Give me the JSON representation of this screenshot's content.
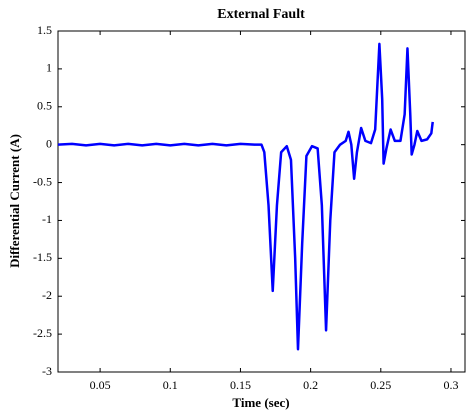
{
  "chart_data": {
    "type": "line",
    "title": "External Fault",
    "x_label": "Time (sec)",
    "y_label": "Differential Current (A)",
    "x": [
      0.02,
      0.03,
      0.04,
      0.05,
      0.06,
      0.07,
      0.08,
      0.09,
      0.1,
      0.11,
      0.12,
      0.13,
      0.14,
      0.15,
      0.16,
      0.165,
      0.167,
      0.17,
      0.173,
      0.176,
      0.179,
      0.183,
      0.186,
      0.189,
      0.191,
      0.194,
      0.197,
      0.201,
      0.205,
      0.208,
      0.211,
      0.214,
      0.217,
      0.221,
      0.225,
      0.227,
      0.229,
      0.231,
      0.233,
      0.236,
      0.239,
      0.243,
      0.246,
      0.249,
      0.251,
      0.252,
      0.254,
      0.257,
      0.26,
      0.264,
      0.267,
      0.269,
      0.271,
      0.272,
      0.274,
      0.276,
      0.279,
      0.283,
      0.286,
      0.287
    ],
    "series": [
      {
        "name": "Differential Current",
        "color": "#0000ff",
        "values": [
          0,
          0.01,
          -0.01,
          0.01,
          -0.01,
          0.01,
          -0.01,
          0.01,
          -0.01,
          0.01,
          -0.01,
          0.01,
          -0.01,
          0.01,
          0,
          0,
          -0.1,
          -0.8,
          -1.93,
          -0.8,
          -0.1,
          -0.02,
          -0.2,
          -1.5,
          -2.7,
          -1.3,
          -0.15,
          -0.02,
          -0.05,
          -0.8,
          -2.45,
          -1,
          -0.1,
          0,
          0.05,
          0.17,
          0,
          -0.45,
          -0.1,
          0.22,
          0.05,
          0.02,
          0.2,
          1.33,
          0.6,
          -0.25,
          -0.05,
          0.2,
          0.05,
          0.05,
          0.4,
          1.27,
          0.4,
          -0.13,
          0,
          0.18,
          0.05,
          0.07,
          0.15,
          0.3
        ]
      }
    ],
    "xlim": [
      0.02,
      0.31
    ],
    "xticks": [
      0.05,
      0.1,
      0.15,
      0.2,
      0.25,
      0.3
    ],
    "ylim": [
      -3,
      1.5
    ],
    "yticks": [
      -3,
      -2.5,
      -2,
      -1.5,
      -1,
      -0.5,
      0,
      0.5,
      1,
      1.5
    ],
    "grid": false
  }
}
